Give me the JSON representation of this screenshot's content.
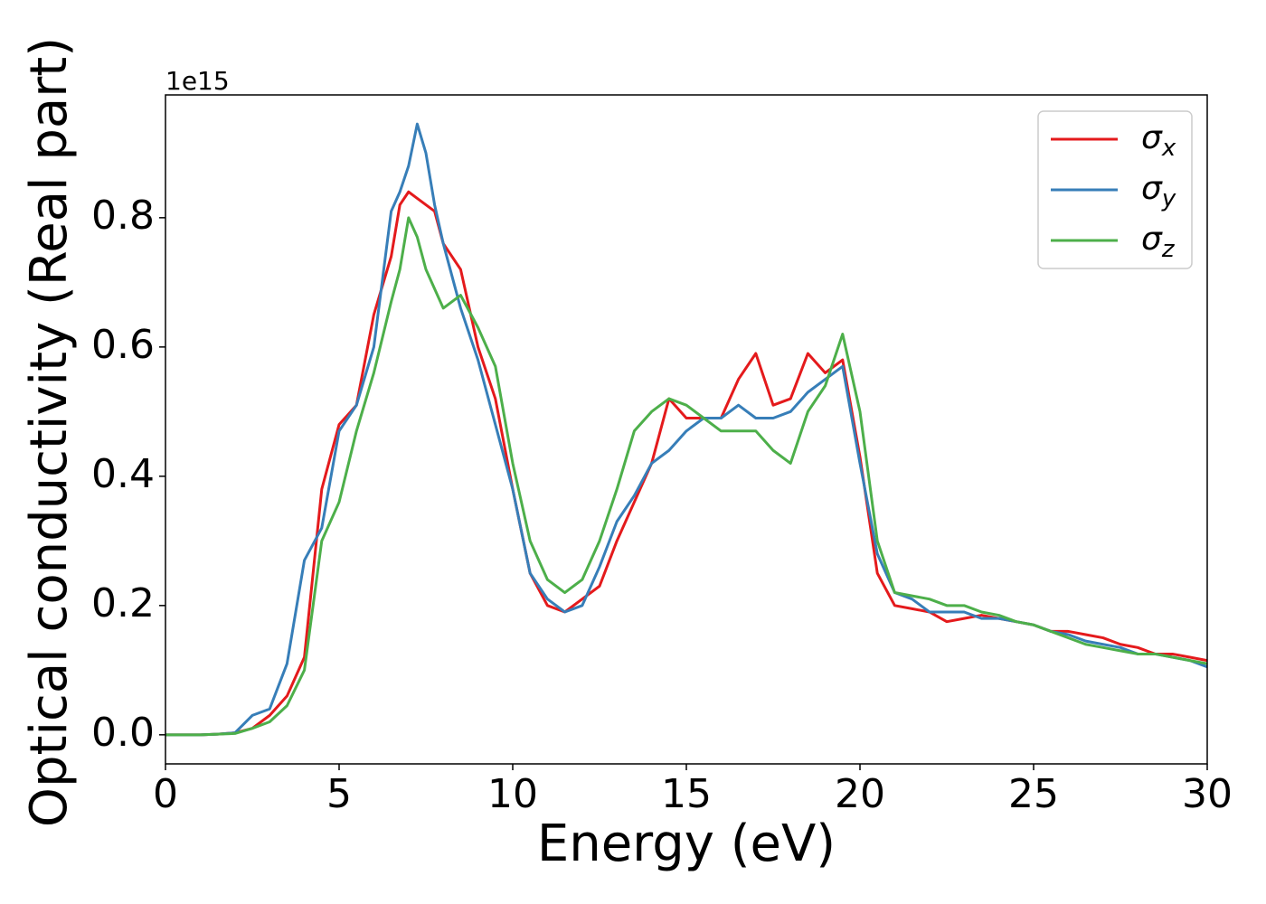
{
  "chart_data": {
    "type": "line",
    "xlabel": "Energy (eV)",
    "ylabel": "Optical conductivity (Real part)",
    "y_offset_label": "1e15",
    "x": [
      0,
      0.5,
      1,
      1.5,
      2,
      2.5,
      3,
      3.5,
      4,
      4.5,
      5,
      5.5,
      6,
      6.5,
      6.75,
      7,
      7.25,
      7.5,
      7.75,
      8,
      8.5,
      9,
      9.5,
      10,
      10.5,
      11,
      11.5,
      12,
      12.5,
      13,
      13.5,
      14,
      14.5,
      15,
      15.5,
      16,
      16.5,
      17,
      17.5,
      18,
      18.5,
      19,
      19.5,
      20,
      20.5,
      21,
      21.5,
      22,
      22.5,
      23,
      23.5,
      24,
      24.5,
      25,
      25.5,
      26,
      26.5,
      27,
      27.5,
      28,
      28.5,
      29,
      29.5,
      30
    ],
    "series": [
      {
        "name": "σx",
        "color": "#e41a1c",
        "values": [
          0,
          0,
          0,
          0.001,
          0.003,
          0.01,
          0.03,
          0.06,
          0.12,
          0.38,
          0.48,
          0.51,
          0.65,
          0.74,
          0.82,
          0.84,
          0.83,
          0.82,
          0.81,
          0.76,
          0.72,
          0.6,
          0.52,
          0.38,
          0.25,
          0.2,
          0.19,
          0.21,
          0.23,
          0.3,
          0.36,
          0.42,
          0.52,
          0.49,
          0.49,
          0.49,
          0.55,
          0.59,
          0.51,
          0.52,
          0.59,
          0.56,
          0.58,
          0.43,
          0.25,
          0.2,
          0.195,
          0.19,
          0.175,
          0.18,
          0.185,
          0.18,
          0.175,
          0.17,
          0.16,
          0.16,
          0.155,
          0.15,
          0.14,
          0.135,
          0.125,
          0.125,
          0.12,
          0.115
        ]
      },
      {
        "name": "σy",
        "color": "#377eb8",
        "values": [
          0,
          0,
          0,
          0.001,
          0.003,
          0.03,
          0.04,
          0.11,
          0.27,
          0.32,
          0.47,
          0.51,
          0.6,
          0.81,
          0.84,
          0.88,
          0.945,
          0.9,
          0.82,
          0.76,
          0.66,
          0.58,
          0.48,
          0.38,
          0.25,
          0.21,
          0.19,
          0.2,
          0.26,
          0.33,
          0.37,
          0.42,
          0.44,
          0.47,
          0.49,
          0.49,
          0.51,
          0.49,
          0.49,
          0.5,
          0.53,
          0.55,
          0.57,
          0.42,
          0.28,
          0.22,
          0.21,
          0.19,
          0.19,
          0.19,
          0.18,
          0.18,
          0.175,
          0.17,
          0.16,
          0.155,
          0.145,
          0.14,
          0.135,
          0.125,
          0.125,
          0.12,
          0.115,
          0.105
        ]
      },
      {
        "name": "σz",
        "color": "#4daf4a",
        "values": [
          0,
          0,
          0,
          0.001,
          0.002,
          0.01,
          0.02,
          0.045,
          0.1,
          0.3,
          0.36,
          0.47,
          0.56,
          0.67,
          0.72,
          0.8,
          0.77,
          0.72,
          0.69,
          0.66,
          0.68,
          0.63,
          0.57,
          0.42,
          0.3,
          0.24,
          0.22,
          0.24,
          0.3,
          0.38,
          0.47,
          0.5,
          0.52,
          0.51,
          0.49,
          0.47,
          0.47,
          0.47,
          0.44,
          0.42,
          0.5,
          0.54,
          0.62,
          0.5,
          0.3,
          0.22,
          0.215,
          0.21,
          0.2,
          0.2,
          0.19,
          0.185,
          0.175,
          0.17,
          0.16,
          0.15,
          0.14,
          0.135,
          0.13,
          0.125,
          0.125,
          0.12,
          0.115,
          0.11
        ]
      }
    ],
    "xlim": [
      0,
      30
    ],
    "xticks": [
      0,
      5,
      10,
      15,
      20,
      25,
      30
    ],
    "ylim": [
      -0.045,
      0.99
    ],
    "yticks": [
      {
        "value": 0,
        "label": "0.0"
      },
      0.2,
      0.4,
      0.6,
      0.8
    ],
    "grid": false,
    "legend": "upper right"
  }
}
